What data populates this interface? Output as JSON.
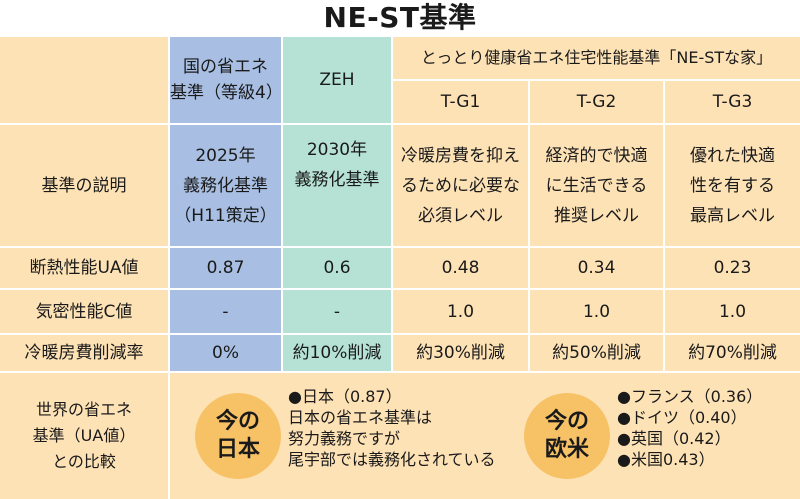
{
  "title": "NE-ST基準",
  "header": {
    "national": [
      "国の省エネ",
      "基準（等級4）"
    ],
    "zeh": "ZEH",
    "nest_group": "とっとり健康省エネ住宅性能基準「NE-STな家」",
    "tg1": "T-G1",
    "tg2": "T-G2",
    "tg3": "T-G3"
  },
  "rows": {
    "description": {
      "label": "基準の説明",
      "national": [
        "2025年",
        "義務化基準",
        "（H11策定）"
      ],
      "zeh": [
        "2030年",
        "義務化基準"
      ],
      "tg1": [
        "冷暖房費を抑え",
        "るために必要な",
        "必須レベル"
      ],
      "tg2": [
        "経済的で快適",
        "に生活できる",
        "推奨レベル"
      ],
      "tg3": [
        "優れた快適",
        "性を有する",
        "最高レベル"
      ]
    },
    "ua": {
      "label": "断熱性能UA値",
      "national": "0.87",
      "zeh": "0.6",
      "tg1": "0.48",
      "tg2": "0.34",
      "tg3": "0.23"
    },
    "c": {
      "label": "気密性能C値",
      "national": "-",
      "zeh": "-",
      "tg1": "1.0",
      "tg2": "1.0",
      "tg3": "1.0"
    },
    "cost": {
      "label": "冷暖房費削減率",
      "national": "0%",
      "zeh": "約10%削減",
      "tg1": "約30%削減",
      "tg2": "約50%削減",
      "tg3": "約70%削減"
    }
  },
  "world": {
    "label": [
      "世界の省エネ",
      "基準（UA値）",
      "との比較"
    ],
    "japan_badge": [
      "今の",
      "日本"
    ],
    "japan_lines": [
      "●日本（0.87）",
      "日本の省エネ基準は",
      "努力義務ですが",
      "尾宇部では義務化されている"
    ],
    "west_badge": [
      "今の",
      "欧米"
    ],
    "west_lines": [
      "●フランス（0.36）",
      "●ドイツ（0.40）",
      "●英国（0.42）",
      "●米国0.43）"
    ]
  }
}
